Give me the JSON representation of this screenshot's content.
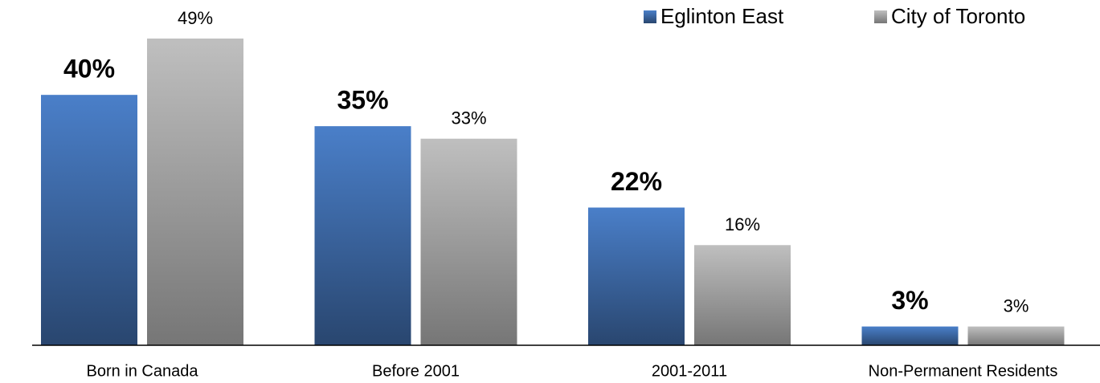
{
  "chart_data": {
    "type": "bar",
    "categories": [
      "Born in Canada",
      "Before 2001",
      "2001-2011",
      "Non-Permanent Residents"
    ],
    "series": [
      {
        "name": "Eglinton East",
        "color": "#4a7fc9",
        "values": [
          40,
          35,
          22,
          3
        ],
        "value_labels": [
          "40%",
          "35%",
          "22%",
          "3%"
        ]
      },
      {
        "name": "City of Toronto",
        "color": "#bfbfbf",
        "values": [
          49,
          33,
          16,
          3
        ],
        "value_labels": [
          "49%",
          "33%",
          "16%",
          "3%"
        ]
      }
    ],
    "legend": "top-right"
  }
}
